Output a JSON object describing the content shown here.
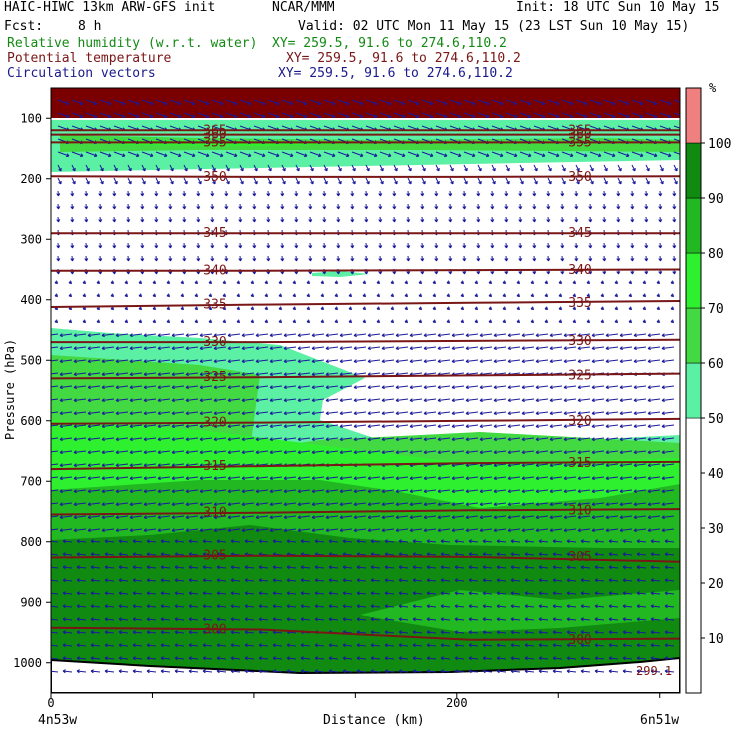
{
  "header": {
    "title_left": "HAIC-HIWC 13km ARW-GFS init",
    "center_org": "NCAR/MMM",
    "init": "Init: 18 UTC Sun 10 May 15",
    "fcst_label": "Fcst:",
    "fcst_value": "8 h",
    "valid": "Valid: 02 UTC Mon 11 May 15 (23 LST Sun 10 May 15)"
  },
  "fields": [
    {
      "label": "Relative humidity (w.r.t. water)",
      "xy": "XY= 259.5, 91.6 to 274.6,110.2",
      "color": "#138a13"
    },
    {
      "label": "Potential temperature",
      "xy": "XY= 259.5, 91.6 to 274.6,110.2",
      "color": "#7a1616"
    },
    {
      "label": "Circulation vectors",
      "xy": "XY= 259.5, 91.6 to 274.6,110.2",
      "color": "#1a1a8c"
    }
  ],
  "colorbar": {
    "unit": "%",
    "ticks": [
      "10",
      "20",
      "30",
      "40",
      "50",
      "60",
      "70",
      "80",
      "90",
      "100"
    ],
    "bins": [
      {
        "from": 0,
        "to": 50,
        "color": "#ffffff"
      },
      {
        "from": 50,
        "to": 60,
        "color": "#5cf0a5"
      },
      {
        "from": 60,
        "to": 70,
        "color": "#43d943"
      },
      {
        "from": 70,
        "to": 80,
        "color": "#2ef02e"
      },
      {
        "from": 80,
        "to": 90,
        "color": "#22b822"
      },
      {
        "from": 90,
        "to": 100,
        "color": "#108a10"
      },
      {
        "from": 100,
        "to": 110,
        "color": "#f08080"
      }
    ]
  },
  "chart_data": {
    "type": "cross-section",
    "xlabel": "Distance (km)",
    "ylabel": "Pressure (hPa)",
    "x_ticks": [
      "0",
      "200"
    ],
    "xlim": [
      0,
      310
    ],
    "y_ticks": [
      "100",
      "200",
      "300",
      "400",
      "500",
      "600",
      "700",
      "800",
      "900",
      "1000"
    ],
    "ylim": [
      1050,
      50
    ],
    "left_endpoint": "4n53w",
    "right_endpoint": "6n51w",
    "theta_contours": [
      {
        "value": 365,
        "label": "365",
        "levels": [
          120,
          120,
          120,
          120
        ]
      },
      {
        "value": 360,
        "label": "360",
        "levels": [
          127,
          127,
          127,
          127
        ]
      },
      {
        "value": 355,
        "label": "355",
        "levels": [
          140,
          140,
          140,
          140
        ]
      },
      {
        "value": 350,
        "label": "350",
        "levels": [
          196,
          197,
          197,
          196
        ]
      },
      {
        "value": 345,
        "label": "345",
        "levels": [
          290,
          290,
          290,
          290
        ]
      },
      {
        "value": 340,
        "label": "340",
        "levels": [
          352,
          352,
          351,
          350
        ]
      },
      {
        "value": 335,
        "label": "335",
        "levels": [
          412,
          408,
          405,
          402
        ]
      },
      {
        "value": 330,
        "label": "330",
        "levels": [
          470,
          470,
          468,
          466
        ]
      },
      {
        "value": 325,
        "label": "325",
        "levels": [
          530,
          528,
          525,
          522
        ]
      },
      {
        "value": 320,
        "label": "320",
        "levels": [
          605,
          603,
          600,
          597
        ]
      },
      {
        "value": 315,
        "label": "315",
        "levels": [
          680,
          675,
          670,
          668
        ]
      },
      {
        "value": 310,
        "label": "310",
        "levels": [
          755,
          752,
          748,
          746
        ]
      },
      {
        "value": 305,
        "label": "305",
        "levels": [
          826,
          823,
          825,
          833
        ]
      },
      {
        "value": 300,
        "label": "300",
        "levels": [
          942,
          945,
          962,
          960
        ]
      }
    ],
    "corner_label": "299.1"
  }
}
